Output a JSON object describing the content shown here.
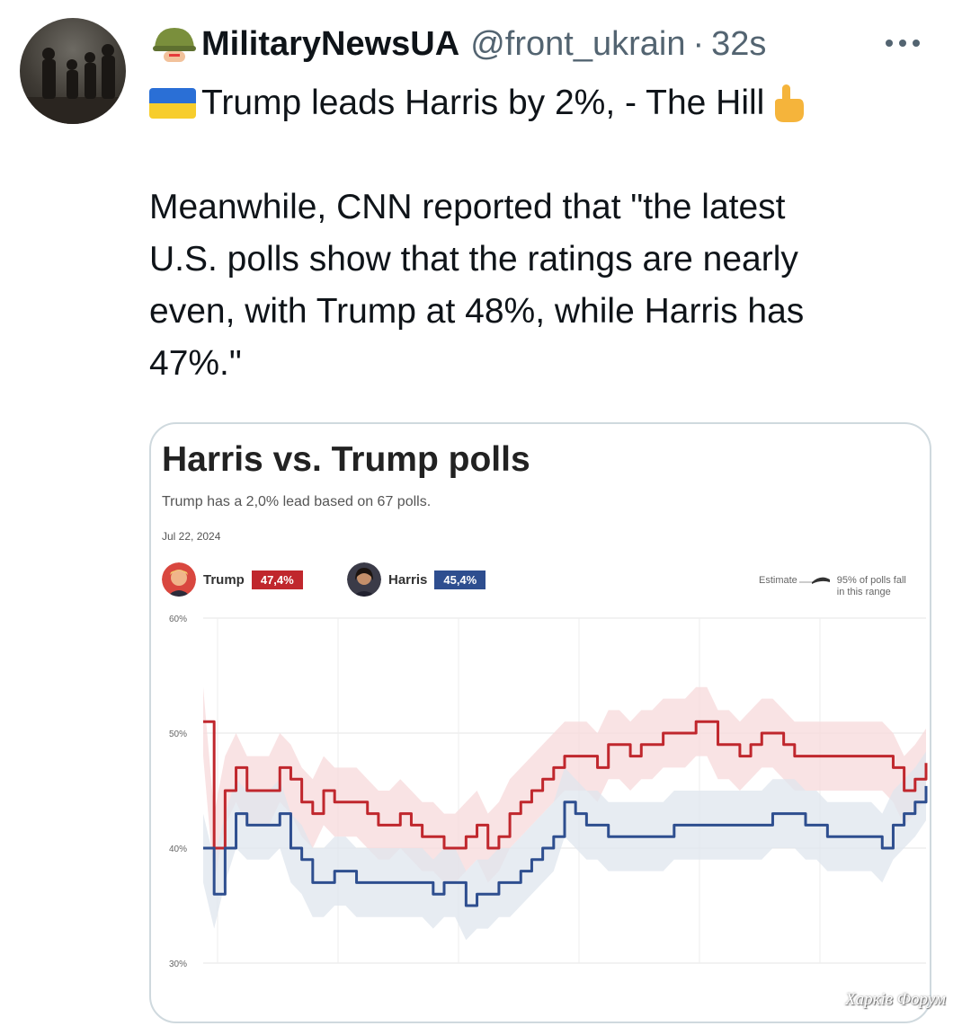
{
  "tweet": {
    "display_name": "MilitaryNewsUA",
    "handle": "@front_ukrain",
    "separator": "·",
    "time": "32s",
    "line1": "Trump leads Harris by 2%, - The Hill",
    "body_lines": [
      "Meanwhile, CNN reported that \"the latest",
      "U.S. polls show that the ratings are nearly",
      "even, with Trump at 48%, while Harris has",
      "47%.\""
    ],
    "icons": [
      "soldier-helmet-emoji",
      "ukraine-flag-emoji",
      "pointing-up-hand-emoji",
      "more-icon"
    ]
  },
  "card": {
    "title": "Harris vs. Trump polls",
    "subtitle": "Trump has a 2,0% lead based on 67 polls.",
    "date": "Jul 22, 2024",
    "trump_label": "Trump",
    "trump_value": "47,4%",
    "harris_label": "Harris",
    "harris_value": "45,4%",
    "legend_estimate": "Estimate",
    "legend_range_line1": "95% of polls fall",
    "legend_range_line2": "in this range",
    "colors": {
      "trump": "#c0272d",
      "harris": "#2e4e8f"
    }
  },
  "chart_data": {
    "type": "line",
    "title": "Harris vs. Trump polls",
    "subtitle": "Trump has a 2,0% lead based on 67 polls.",
    "y_tick_labels": [
      "60%",
      "50%",
      "40%",
      "30%"
    ],
    "ylim": [
      30,
      60
    ],
    "grid": true,
    "legend_position": "top-right",
    "x": [
      0,
      1,
      2,
      3,
      4,
      5,
      6,
      7,
      8,
      9,
      10,
      11,
      12,
      13,
      14,
      15,
      16,
      17,
      18,
      19,
      20,
      21,
      22,
      23,
      24,
      25,
      26,
      27,
      28,
      29,
      30,
      31,
      32,
      33,
      34,
      35,
      36,
      37,
      38,
      39,
      40,
      41,
      42,
      43,
      44,
      45,
      46,
      47,
      48,
      49,
      50,
      51,
      52,
      53,
      54,
      55,
      56,
      57,
      58,
      59,
      60,
      61,
      62,
      63,
      64,
      65,
      66
    ],
    "series": [
      {
        "name": "Trump",
        "color": "#c0272d",
        "values": [
          51,
          40,
          45,
          47,
          45,
          45,
          45,
          47,
          46,
          44,
          43,
          45,
          44,
          44,
          44,
          43,
          42,
          42,
          43,
          42,
          41,
          41,
          40,
          40,
          41,
          42,
          40,
          41,
          43,
          44,
          45,
          46,
          47,
          48,
          48,
          48,
          47,
          49,
          49,
          48,
          49,
          49,
          50,
          50,
          50,
          51,
          51,
          49,
          49,
          48,
          49,
          50,
          50,
          49,
          48,
          48,
          48,
          48,
          48,
          48,
          48,
          48,
          48,
          47,
          45,
          46,
          47.4
        ]
      },
      {
        "name": "Harris",
        "color": "#2e4e8f",
        "values": [
          40,
          36,
          40,
          43,
          42,
          42,
          42,
          43,
          40,
          39,
          37,
          37,
          38,
          38,
          37,
          37,
          37,
          37,
          37,
          37,
          37,
          36,
          37,
          37,
          35,
          36,
          36,
          37,
          37,
          38,
          39,
          40,
          41,
          44,
          43,
          42,
          42,
          41,
          41,
          41,
          41,
          41,
          41,
          42,
          42,
          42,
          42,
          42,
          42,
          42,
          42,
          42,
          43,
          43,
          43,
          42,
          42,
          41,
          41,
          41,
          41,
          41,
          40,
          42,
          43,
          44,
          45.4
        ]
      }
    ]
  }
}
